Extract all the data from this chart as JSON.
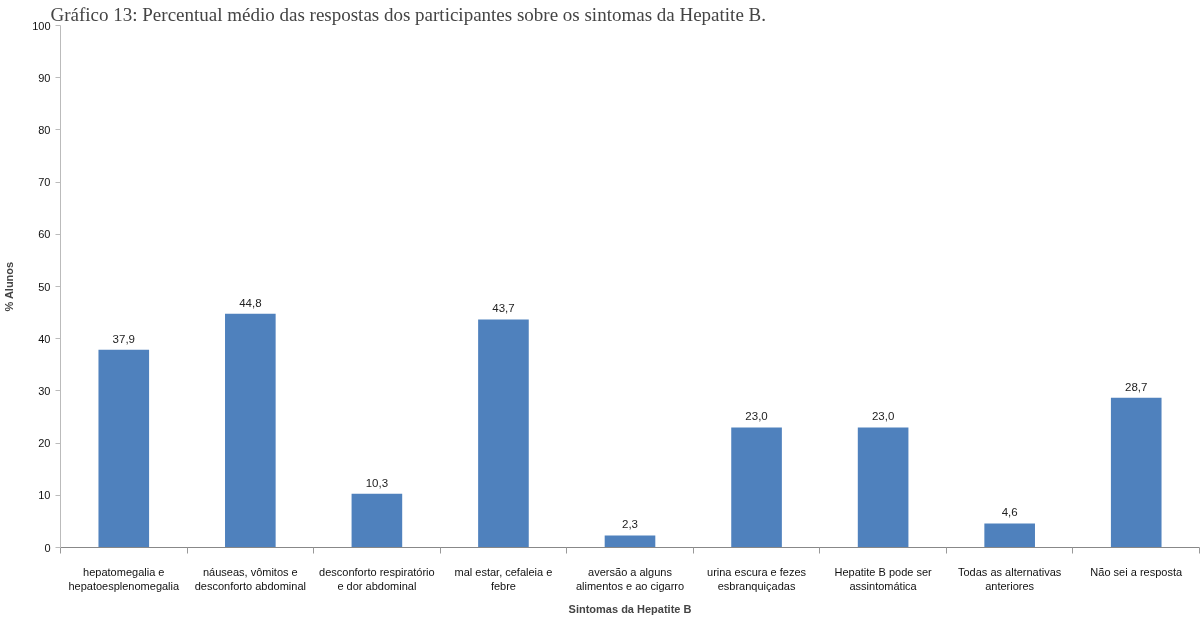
{
  "chart_data": {
    "type": "bar",
    "title": "Gráfico 13: Percentual médio das respostas dos participantes sobre os sintomas da Hepatite B.",
    "xlabel": "Sintomas da Hepatite B",
    "ylabel": "% Alunos",
    "categories": [
      "hepatomegalia e hepatoesplenomegalia",
      "náuseas, vômitos e desconforto abdominal",
      "desconforto respiratório e dor abdominal",
      "mal estar, cefaleia e febre",
      "aversão a alguns alimentos e ao cigarro",
      "urina escura e fezes esbranquiçadas",
      "Hepatite B pode ser assintomática",
      "Todas as alternativas anteriores",
      "Não sei a resposta"
    ],
    "values": [
      37.9,
      44.8,
      10.3,
      43.7,
      2.3,
      23.0,
      23.0,
      4.6,
      28.7
    ],
    "value_labels": [
      "37,9",
      "44,8",
      "10,3",
      "43,7",
      "2,3",
      "23,0",
      "23,0",
      "4,6",
      "28,7"
    ],
    "color": "#4f81bd",
    "ylim": [
      0,
      100
    ],
    "yticks": [
      0,
      10,
      20,
      30,
      40,
      50,
      60,
      70,
      80,
      90,
      100
    ]
  }
}
